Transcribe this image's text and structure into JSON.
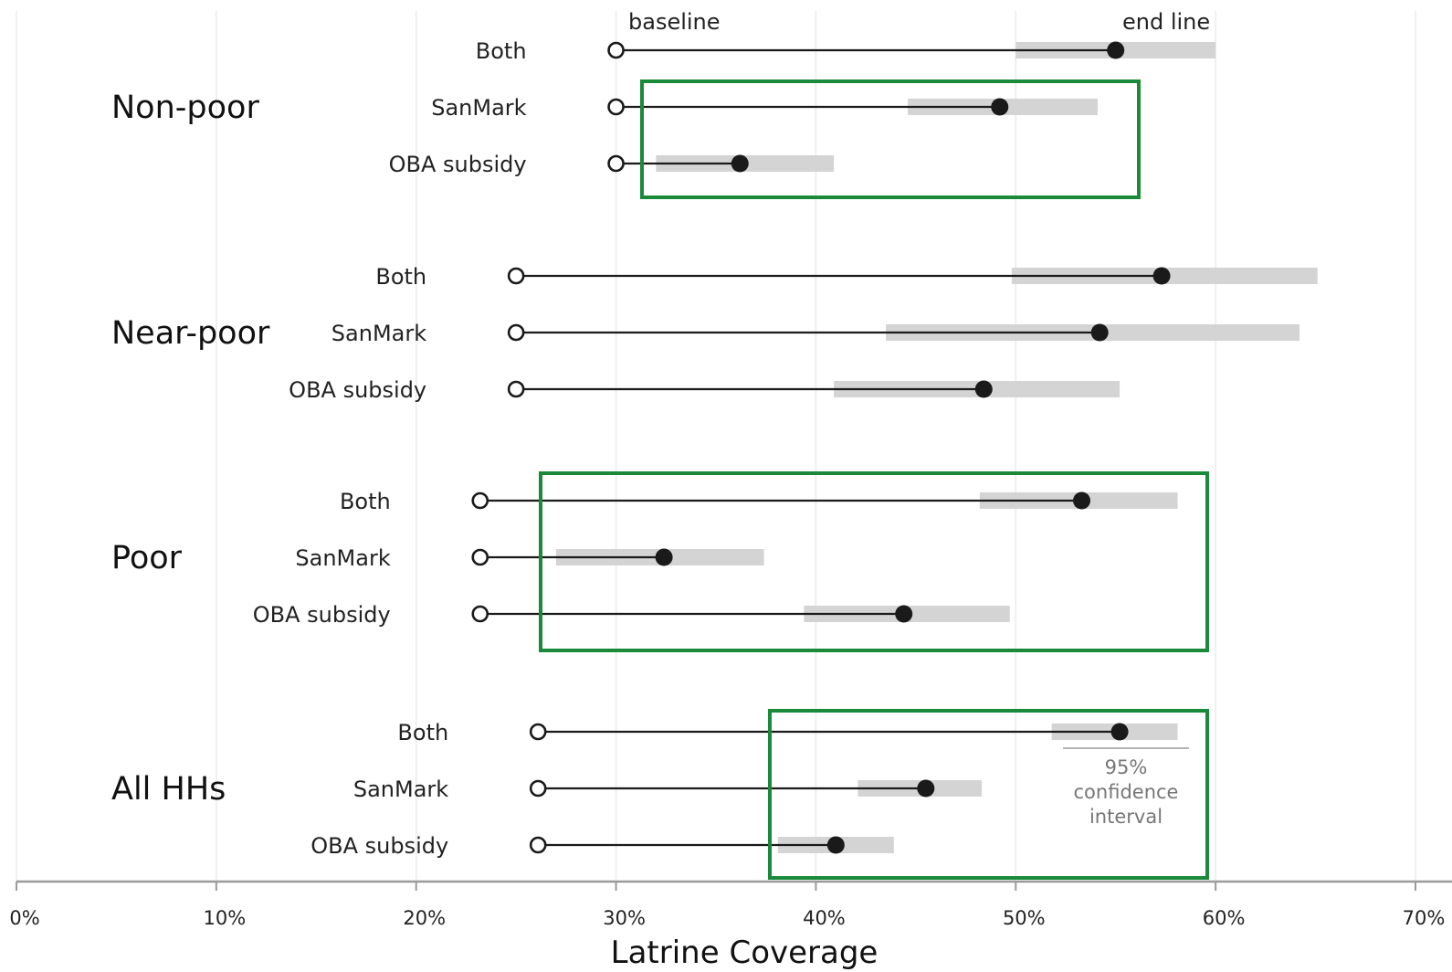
{
  "chart_data": {
    "type": "dot-range",
    "xlabel": "Latrine Coverage",
    "xlim": [
      0,
      70
    ],
    "x_ticks": [
      0,
      10,
      20,
      30,
      40,
      50,
      60,
      70
    ],
    "x_tick_labels": [
      "0%",
      "10%",
      "20%",
      "30%",
      "40%",
      "50%",
      "60%",
      "70%"
    ],
    "legend": {
      "baseline_label": "baseline",
      "endline_label": "end line",
      "ci_label_lines": [
        "95%",
        "confidence",
        "interval"
      ]
    },
    "groups": [
      {
        "name": "Non-poor",
        "rows": [
          {
            "label": "Both",
            "baseline": 30.0,
            "endline": 55.0,
            "ci": [
              50.0,
              60.0
            ]
          },
          {
            "label": "SanMark",
            "baseline": 30.0,
            "endline": 49.2,
            "ci": [
              44.6,
              54.1
            ]
          },
          {
            "label": "OBA subsidy",
            "baseline": 30.0,
            "endline": 36.2,
            "ci": [
              32.0,
              40.9
            ]
          }
        ]
      },
      {
        "name": "Near-poor",
        "rows": [
          {
            "label": "Both",
            "baseline": 25.0,
            "endline": 57.3,
            "ci": [
              49.8,
              65.1
            ]
          },
          {
            "label": "SanMark",
            "baseline": 25.0,
            "endline": 54.2,
            "ci": [
              43.5,
              64.2
            ]
          },
          {
            "label": "OBA subsidy",
            "baseline": 25.0,
            "endline": 48.4,
            "ci": [
              40.9,
              55.2
            ]
          }
        ]
      },
      {
        "name": "Poor",
        "rows": [
          {
            "label": "Both",
            "baseline": 23.2,
            "endline": 53.3,
            "ci": [
              48.2,
              58.1
            ]
          },
          {
            "label": "SanMark",
            "baseline": 23.2,
            "endline": 32.4,
            "ci": [
              27.0,
              37.4
            ]
          },
          {
            "label": "OBA subsidy",
            "baseline": 23.2,
            "endline": 44.4,
            "ci": [
              39.4,
              49.7
            ]
          }
        ]
      },
      {
        "name": "All HHs",
        "rows": [
          {
            "label": "Both",
            "baseline": 26.1,
            "endline": 55.2,
            "ci": [
              51.8,
              58.1
            ]
          },
          {
            "label": "SanMark",
            "baseline": 26.1,
            "endline": 45.5,
            "ci": [
              42.1,
              48.3
            ]
          },
          {
            "label": "OBA subsidy",
            "baseline": 26.1,
            "endline": 41.0,
            "ci": [
              38.1,
              43.9
            ]
          }
        ]
      }
    ],
    "highlight_color": "#1a8a3a",
    "ci_color": "#d4d4d4",
    "point_color": "#1a1a1a"
  }
}
